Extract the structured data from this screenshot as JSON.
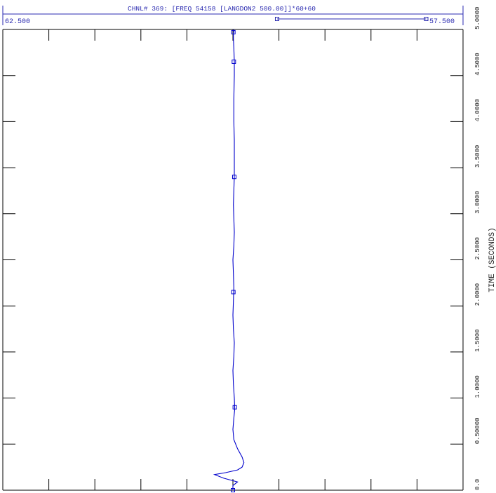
{
  "header": {
    "title": "CHNL# 369:   [FREQ  54158 [LANGDON2    500.00]]*60+60",
    "x_left_label": "62.500",
    "x_right_label": "57.500"
  },
  "chart_data": {
    "type": "line",
    "title": "CHNL# 369:   [FREQ  54158 [LANGDON2    500.00]]*60+60",
    "xlabel": "",
    "ylabel": "TIME (SECONDS)",
    "xlim": [
      62.5,
      57.5
    ],
    "ylim": [
      0.0,
      5.0
    ],
    "x_axis_reversed": true,
    "y_ticks": [
      0.0,
      0.5,
      1.0,
      1.5,
      2.0,
      2.5,
      3.0,
      3.5,
      4.0,
      4.5,
      5.0
    ],
    "y_tick_labels": [
      "0.0",
      "0.50000",
      "1.0000",
      "1.5000",
      "2.0000",
      "2.5000",
      "3.0000",
      "3.5000",
      "4.0000",
      "4.5000",
      "5.0000"
    ],
    "series": [
      {
        "color": "#0000cc",
        "points": [
          [
            60.0,
            0.0
          ],
          [
            60.0,
            0.05
          ],
          [
            59.95,
            0.09
          ],
          [
            60.1,
            0.13
          ],
          [
            60.2,
            0.17
          ],
          [
            60.08,
            0.19
          ],
          [
            59.95,
            0.22
          ],
          [
            59.9,
            0.25
          ],
          [
            59.88,
            0.3
          ],
          [
            59.9,
            0.36
          ],
          [
            59.95,
            0.45
          ],
          [
            59.99,
            0.55
          ],
          [
            60.0,
            0.66
          ],
          [
            59.99,
            0.78
          ],
          [
            59.98,
            0.88
          ],
          [
            59.985,
            1.0
          ],
          [
            59.995,
            1.15
          ],
          [
            60.0,
            1.3
          ],
          [
            59.99,
            1.45
          ],
          [
            59.985,
            1.6
          ],
          [
            59.995,
            1.75
          ],
          [
            60.0,
            1.9
          ],
          [
            59.995,
            2.05
          ],
          [
            59.99,
            2.2
          ],
          [
            59.995,
            2.35
          ],
          [
            60.0,
            2.5
          ],
          [
            59.99,
            2.65
          ],
          [
            59.985,
            2.8
          ],
          [
            59.99,
            2.95
          ],
          [
            59.995,
            3.1
          ],
          [
            59.99,
            3.25
          ],
          [
            59.985,
            3.4
          ],
          [
            59.985,
            3.6
          ],
          [
            59.985,
            3.8
          ],
          [
            59.99,
            4.0
          ],
          [
            59.99,
            4.25
          ],
          [
            59.985,
            4.5
          ],
          [
            59.985,
            4.65
          ],
          [
            59.99,
            4.8
          ],
          [
            59.995,
            4.9
          ],
          [
            59.995,
            4.96
          ],
          [
            59.99,
            5.0
          ]
        ],
        "markers": [
          [
            60.0,
            0.0
          ],
          [
            59.98,
            0.9
          ],
          [
            59.995,
            2.15
          ],
          [
            59.985,
            3.4
          ],
          [
            59.99,
            4.65
          ],
          [
            59.995,
            4.97
          ]
        ]
      }
    ],
    "legend_marker_bar": {
      "from_x": 59.52,
      "to_x": 57.9
    },
    "grid": false
  }
}
